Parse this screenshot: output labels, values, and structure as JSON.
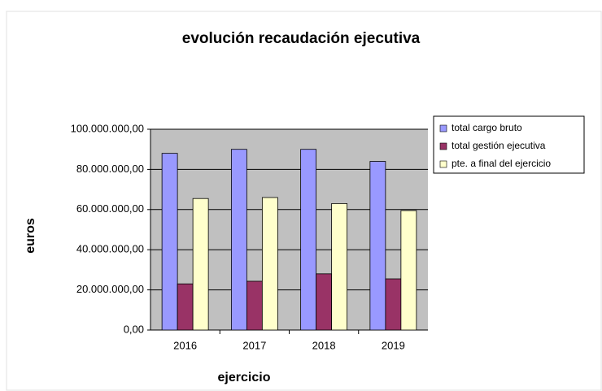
{
  "chart_data": {
    "type": "bar",
    "title": "evolución recaudación ejecutiva",
    "x_label": "ejercicio",
    "y_label": "euros",
    "categories": [
      "2016",
      "2017",
      "2018",
      "2019"
    ],
    "series": [
      {
        "name": "total cargo bruto",
        "color": "#9999ff",
        "values": [
          88000000,
          90000000,
          90000000,
          84000000
        ]
      },
      {
        "name": "total gestión ejecutiva",
        "color": "#993366",
        "values": [
          23000000,
          24300000,
          28000000,
          25500000
        ]
      },
      {
        "name": "pte. a final del ejercicio",
        "color": "#ffffcc",
        "values": [
          65500000,
          66000000,
          63000000,
          59500000
        ]
      }
    ],
    "ylim": [
      0,
      100000000
    ],
    "yticks": [
      {
        "value": 0,
        "label": "0,00"
      },
      {
        "value": 20000000,
        "label": "20.000.000,00"
      },
      {
        "value": 40000000,
        "label": "40.000.000,00"
      },
      {
        "value": 60000000,
        "label": "60.000.000,00"
      },
      {
        "value": 80000000,
        "label": "80.000.000,00"
      },
      {
        "value": 100000000,
        "label": "100.000.000,00"
      }
    ],
    "grid": true,
    "legend": "right"
  }
}
